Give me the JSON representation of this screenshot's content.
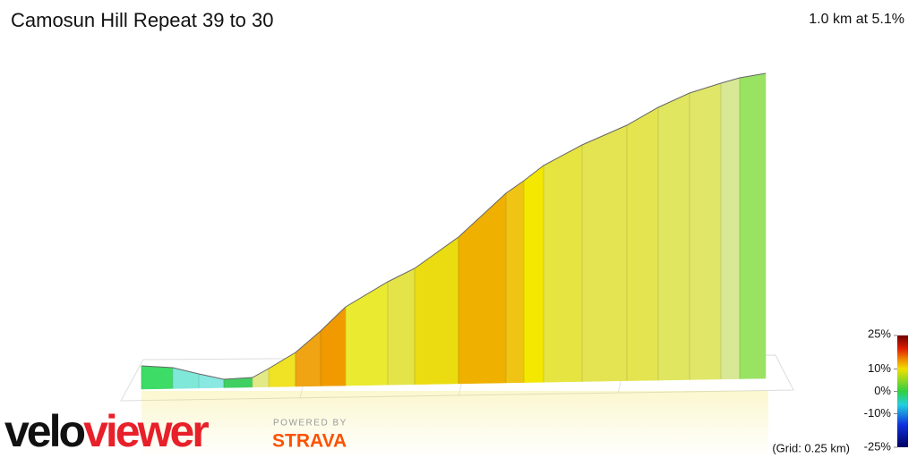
{
  "header": {
    "title": "Camosun Hill Repeat 39 to 30",
    "summary": "1.0 km at 5.1%"
  },
  "legend": {
    "ticks": [
      {
        "value": 25,
        "label": "25%"
      },
      {
        "value": 10,
        "label": "10%"
      },
      {
        "value": 0,
        "label": "0%"
      },
      {
        "value": -10,
        "label": "-10%"
      },
      {
        "value": -25,
        "label": "-25%"
      }
    ],
    "range": [
      -25,
      25
    ],
    "grid_note": "(Grid: 0.25 km)"
  },
  "branding": {
    "logo": [
      "velo",
      "viewer"
    ],
    "powered_by": "POWERED BY",
    "strava": "STRAVA"
  }
}
